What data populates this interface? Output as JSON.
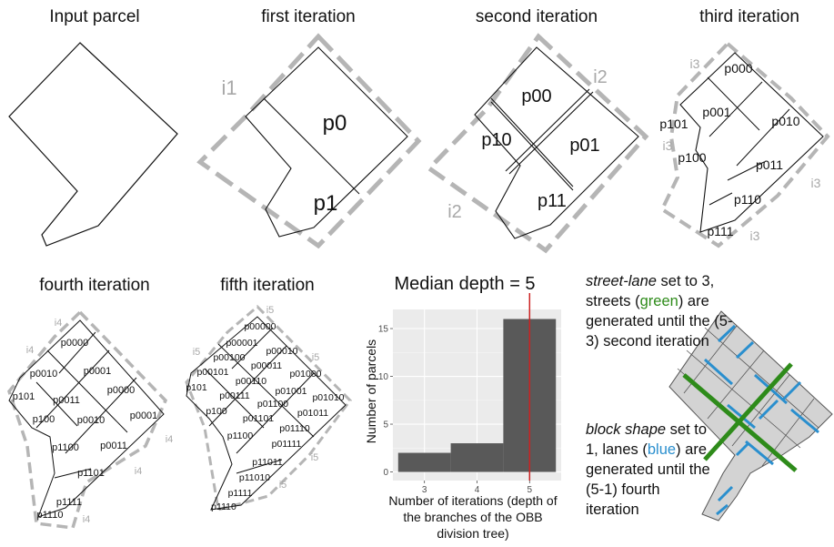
{
  "titles": {
    "input": "Input parcel",
    "first": "first iteration",
    "second": "second iteration",
    "third": "third iteration",
    "fourth": "fourth iteration",
    "fifth": "fifth iteration"
  },
  "first": {
    "p0": "p0",
    "p1": "p1",
    "i1": "i1"
  },
  "second": {
    "p00": "p00",
    "p01": "p01",
    "p10": "p10",
    "p11": "p11",
    "i2": "i2"
  },
  "third": {
    "p000": "p000",
    "p001": "p001",
    "p010": "p010",
    "p011": "p011",
    "p100": "p100",
    "p101": "p101",
    "p110": "p110",
    "p111": "p111",
    "i3": "i3"
  },
  "fourth": {
    "labels": [
      "p0000",
      "p0010",
      "p0001",
      "p101",
      "p0011",
      "p0000",
      "p100",
      "p0010",
      "p0001",
      "p1100",
      "p0011",
      "p1101",
      "p1111",
      "p1110"
    ],
    "i4": "i4"
  },
  "fifth": {
    "labels": [
      "p00000",
      "p00001",
      "p00100",
      "p00010",
      "p00101",
      "p00011",
      "p01000",
      "p101",
      "p00110",
      "p00111",
      "p01001",
      "p01010",
      "p100",
      "p01100",
      "p01101",
      "p01011",
      "p01110",
      "p1100",
      "p01111",
      "p11011",
      "p11010",
      "p1111",
      "p1110"
    ],
    "i5": "i5"
  },
  "chart_data": {
    "type": "bar",
    "title": "Median depth = 5",
    "xlabel": "Number of iterations (depth of the branches of the OBB division tree)",
    "ylabel": "Number of parcels",
    "categories": [
      3,
      4,
      5
    ],
    "values": [
      2,
      3,
      16
    ],
    "xticks": [
      "3",
      "4",
      "5"
    ],
    "yticks": [
      "0",
      "5",
      "10",
      "15"
    ],
    "ylim": [
      0,
      17
    ],
    "median": 5,
    "median_color": "#cc2222",
    "bar_color": "#595959",
    "panel_color": "#ebebeb"
  },
  "explanation": {
    "p1_em": "street-lane",
    "p1_a": " set to 3, streets (",
    "p1_color": "green",
    "p1_b": ") are generated until the (5-3) second iteration",
    "p2_em": "block shape",
    "p2_a": " set to 1, lanes (",
    "p2_color": "blue",
    "p2_b": ") are generated until the (5-1) fourth iteration",
    "green": "#2e8b1a",
    "blue": "#2a8fce"
  }
}
